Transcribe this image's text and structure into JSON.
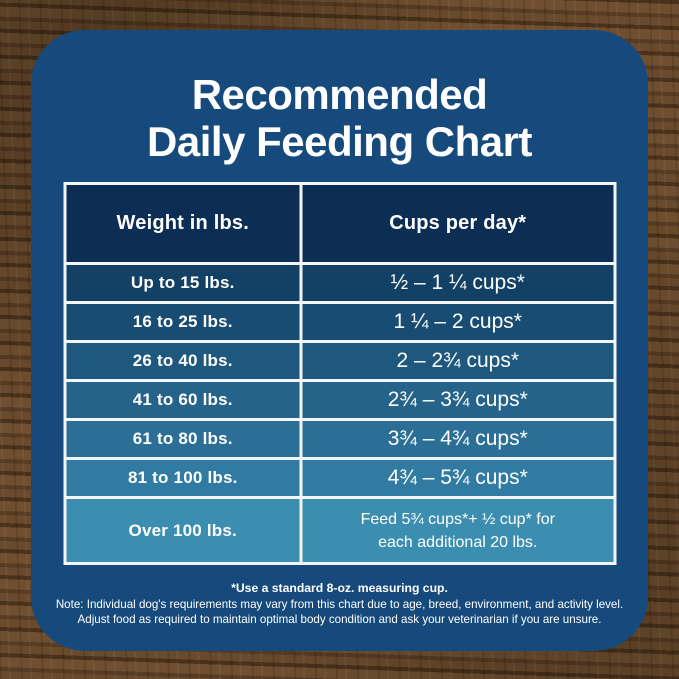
{
  "display": {
    "title_lines": [
      "Recommended",
      "Daily Feeding Chart"
    ],
    "header": {
      "weight": "Weight in lbs.",
      "cups": "Cups per day*"
    },
    "rows": [
      {
        "weight": "Up to 15 lbs.",
        "cups": "½ – 1 ¼ cups*"
      },
      {
        "weight": "16 to 25 lbs.",
        "cups": "1 ¼ –  2 cups*"
      },
      {
        "weight": "26 to 40 lbs.",
        "cups": "2 – 2¾ cups*"
      },
      {
        "weight": "41 to 60 lbs.",
        "cups": "2¾ – 3¾ cups*"
      },
      {
        "weight": "61 to 80 lbs.",
        "cups": "3¾ – 4¾ cups*"
      },
      {
        "weight": "81 to 100 lbs.",
        "cups": "4¾ – 5¾ cups*"
      },
      {
        "weight": "Over 100 lbs.",
        "cups_line1": "Feed 5¾ cups*+ ½ cup* for",
        "cups_line2": "each additional 20 lbs."
      }
    ],
    "footer_lines": [
      "*Use a standard 8-oz. measuring cup.",
      "Note: Individual dog's requirements may vary from this chart due to age, breed, environment, and activity level.",
      "Adjust food as required to maintain optimal body condition and ask your veterinarian if you are unsure."
    ]
  },
  "colors": {
    "card_blue": "#164a7c",
    "header_navy": "#0d2e54",
    "row_gradient": [
      "#134166",
      "#194c72",
      "#1f587e",
      "#25638a",
      "#2b6f96",
      "#317ba2",
      "#3c8eb0"
    ],
    "border_white": "#f3f6f8",
    "text_white": "#ffffff",
    "wood_brown": "#5b3f27"
  },
  "chart_data": {
    "type": "table",
    "title": "Recommended Daily Feeding Chart",
    "columns": [
      "Weight in lbs.",
      "Cups per day*"
    ],
    "rows": [
      [
        "Up to 15 lbs.",
        "½ – 1 ¼ cups*"
      ],
      [
        "16 to 25 lbs.",
        "1 ¼ – 2 cups*"
      ],
      [
        "26 to 40 lbs.",
        "2 – 2¾ cups*"
      ],
      [
        "41 to 60 lbs.",
        "2¾ – 3¾ cups*"
      ],
      [
        "61 to 80 lbs.",
        "3¾ – 4¾ cups*"
      ],
      [
        "81 to 100 lbs.",
        "4¾ – 5¾ cups*"
      ],
      [
        "Over 100 lbs.",
        "Feed 5¾ cups*+ ½ cup* for each additional 20 lbs."
      ]
    ],
    "footnotes": [
      "*Use a standard 8-oz. measuring cup.",
      "Note: Individual dog's requirements may vary from this chart due to age, breed, environment, and activity level. Adjust food as required to maintain optimal body condition and ask your veterinarian if you are unsure."
    ]
  }
}
